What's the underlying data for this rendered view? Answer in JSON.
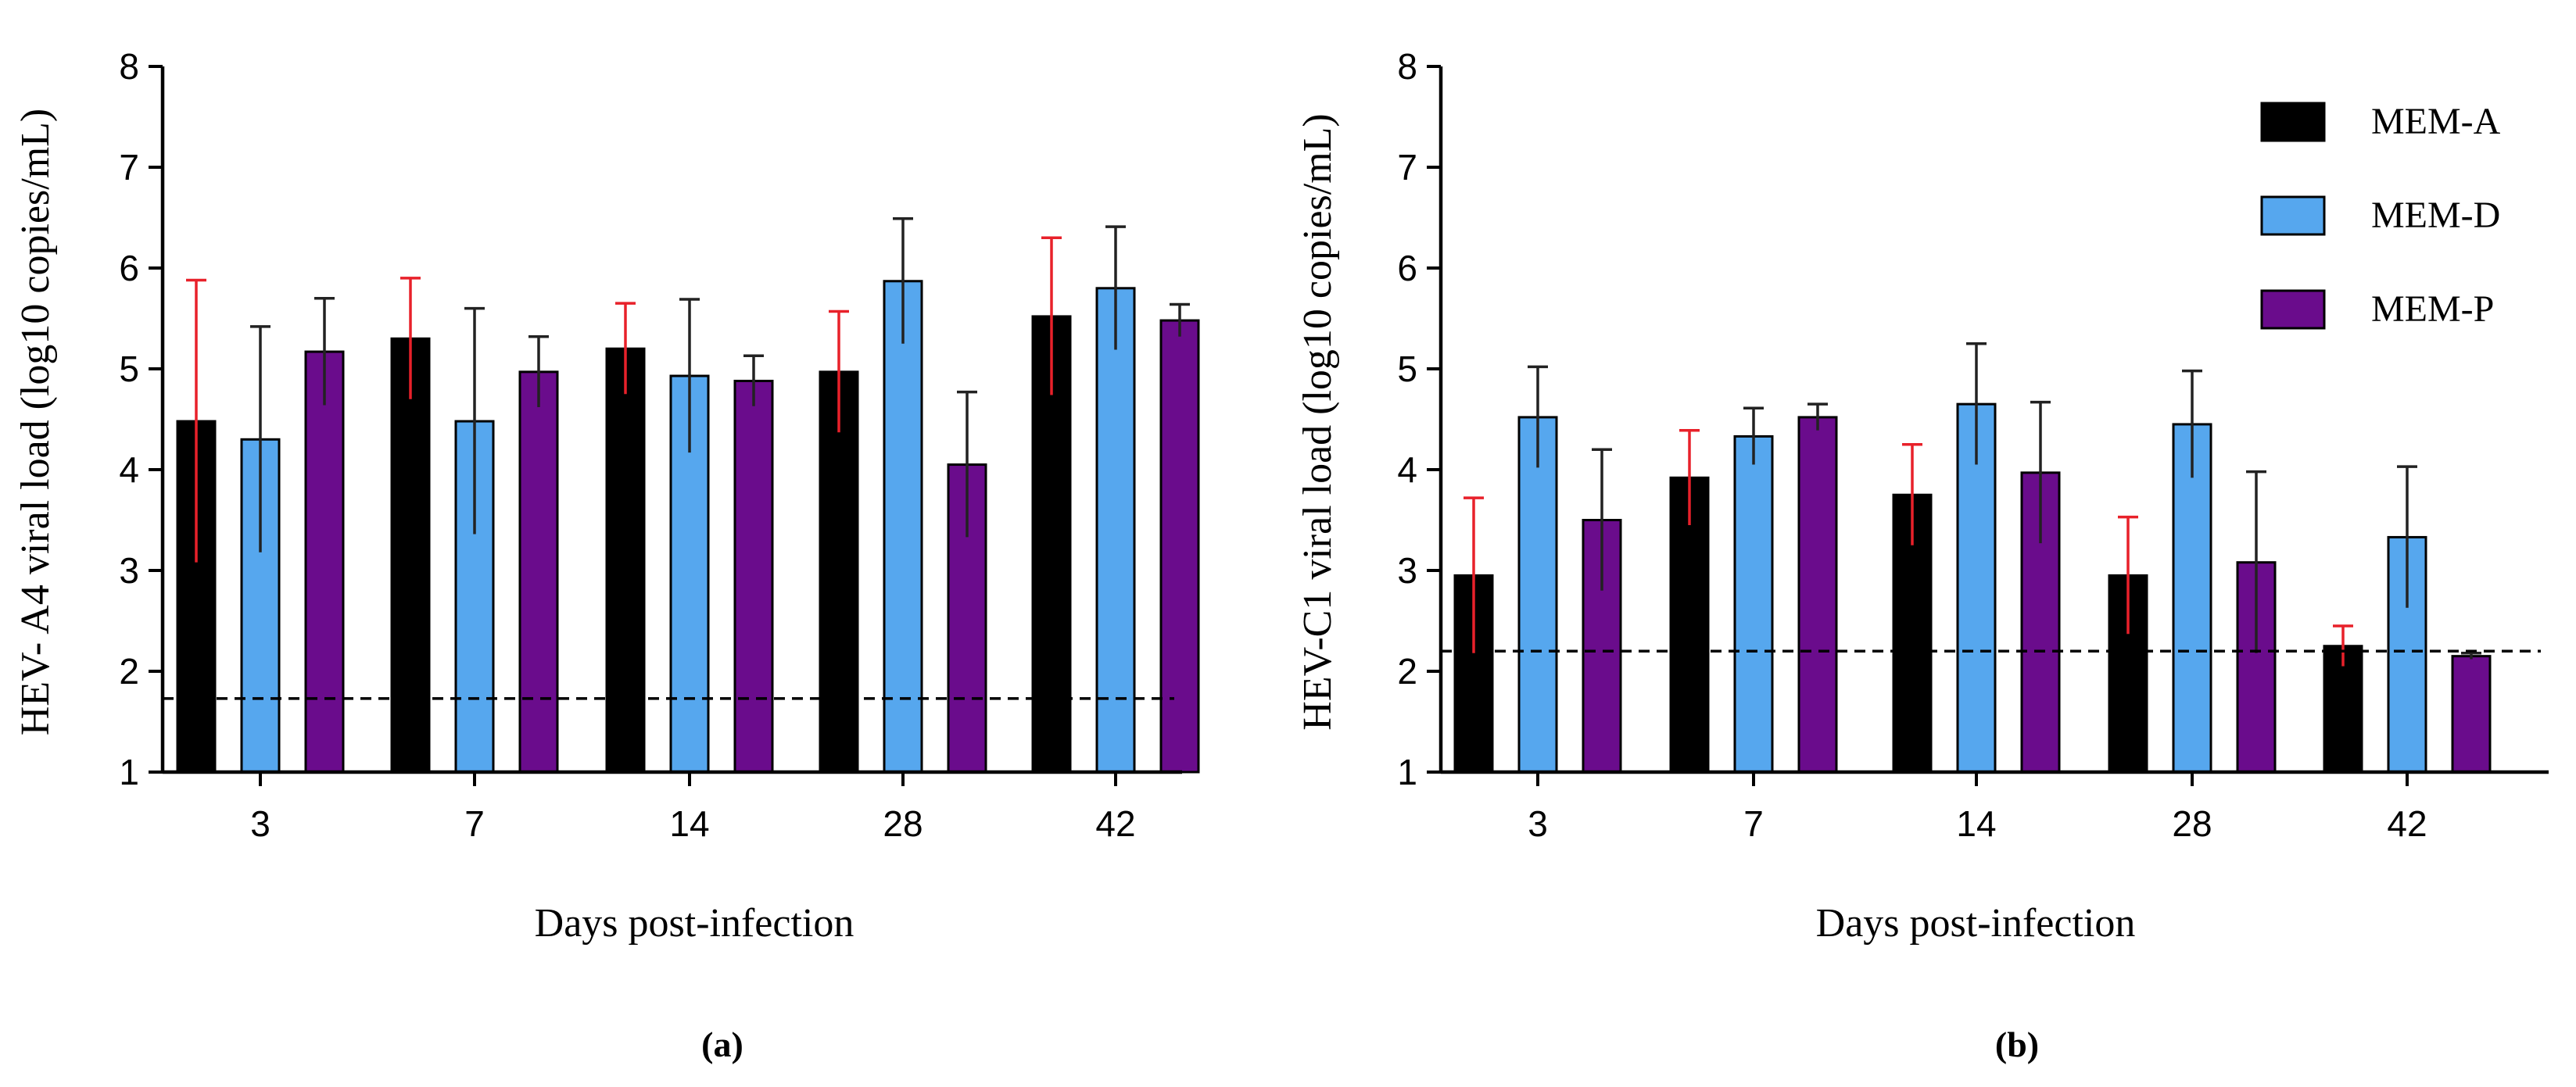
{
  "figure": {
    "legend": [
      {
        "name": "MEM-A",
        "color": "#000000"
      },
      {
        "name": "MEM-D",
        "color": "#56A7EE"
      },
      {
        "name": "MEM-P",
        "color": "#6A0C8C"
      }
    ],
    "error_colors": {
      "MEM-A": "#E8212A",
      "MEM-D": "#222222",
      "MEM-P": "#222222"
    }
  },
  "chart_data": [
    {
      "type": "bar",
      "panel_label": "(a)",
      "xlabel": "Days post-infection",
      "ylabel": "HEV- A4 viral load  (log10 copies/mL)",
      "categories": [
        "3",
        "7",
        "14",
        "28",
        "42"
      ],
      "ylim": [
        1,
        8
      ],
      "yticks": [
        "1",
        "2",
        "3",
        "4",
        "5",
        "6",
        "7",
        "8"
      ],
      "detection_limit": 1.73,
      "series": [
        {
          "name": "MEM-A",
          "values": [
            4.48,
            5.3,
            5.2,
            4.97,
            5.52
          ],
          "errors": [
            1.4,
            0.6,
            0.45,
            0.6,
            0.78
          ]
        },
        {
          "name": "MEM-D",
          "values": [
            4.3,
            4.48,
            4.93,
            5.87,
            5.8
          ],
          "errors": [
            1.12,
            1.12,
            0.76,
            0.62,
            0.61
          ]
        },
        {
          "name": "MEM-P",
          "values": [
            5.17,
            4.97,
            4.88,
            4.05,
            5.48
          ],
          "errors": [
            0.53,
            0.35,
            0.25,
            0.72,
            0.16
          ]
        }
      ]
    },
    {
      "type": "bar",
      "panel_label": "(b)",
      "xlabel": "Days post-infection",
      "ylabel": "HEV-C1 viral load  (log10 copies/mL)",
      "categories": [
        "3",
        "7",
        "14",
        "28",
        "42"
      ],
      "ylim": [
        1,
        8
      ],
      "yticks": [
        "1",
        "2",
        "3",
        "4",
        "5",
        "6",
        "7",
        "8"
      ],
      "detection_limit": 2.2,
      "series": [
        {
          "name": "MEM-A",
          "values": [
            2.95,
            3.92,
            3.75,
            2.95,
            2.25
          ],
          "errors": [
            0.77,
            0.47,
            0.5,
            0.58,
            0.2
          ]
        },
        {
          "name": "MEM-D",
          "values": [
            4.52,
            4.33,
            4.65,
            4.45,
            3.33
          ],
          "errors": [
            0.5,
            0.28,
            0.6,
            0.53,
            0.7
          ]
        },
        {
          "name": "MEM-P",
          "values": [
            3.5,
            4.52,
            3.97,
            3.08,
            2.15
          ],
          "errors": [
            0.7,
            0.13,
            0.7,
            0.9,
            0.03
          ]
        }
      ]
    }
  ]
}
